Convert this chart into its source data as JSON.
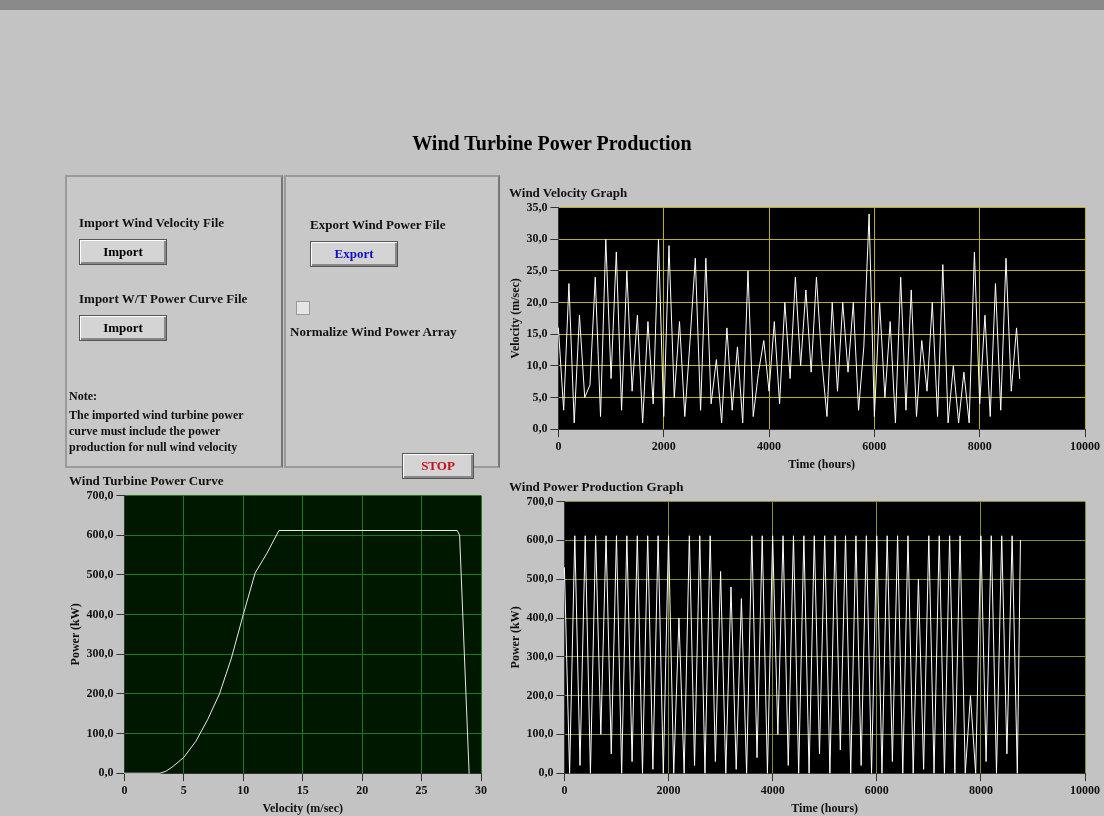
{
  "chart_data": [
    {
      "type": "other",
      "title": "Wind Turbine Power Production",
      "annotations": [
        "Import Wind Velocity File",
        "Import",
        "Import W/T Power Curve File",
        "Import",
        "Note:",
        "The imported wind turbine power curve must include the power production for null wind velocity",
        "Export Wind Power File",
        "Export",
        "Normalize Wind Power Array",
        "STOP"
      ]
    },
    {
      "type": "line",
      "title": "Wind Velocity Graph",
      "xlabel": "Time (hours)",
      "ylabel": "Velocity (m/sec)",
      "grid": true,
      "xlim": [
        0,
        10000
      ],
      "xticks": [
        0,
        2000,
        4000,
        6000,
        8000,
        10000
      ],
      "ylim": [
        0,
        35
      ],
      "yticks": [
        {
          "value": 0,
          "label": "0,0"
        },
        {
          "value": 5,
          "label": "5,0"
        },
        {
          "value": 10,
          "label": "10,0"
        },
        {
          "value": 15,
          "label": "15,0"
        },
        {
          "value": 20,
          "label": "20,0"
        },
        {
          "value": 25,
          "label": "25,0"
        },
        {
          "value": 30,
          "label": "30,0"
        },
        {
          "value": 35,
          "label": "35,0"
        }
      ],
      "x": [
        0,
        100,
        200,
        300,
        400,
        500,
        600,
        700,
        800,
        900,
        1000,
        1100,
        1200,
        1300,
        1400,
        1500,
        1600,
        1700,
        1800,
        1900,
        2000,
        2100,
        2200,
        2300,
        2400,
        2500,
        2600,
        2700,
        2800,
        2900,
        3000,
        3100,
        3200,
        3300,
        3400,
        3500,
        3600,
        3700,
        3800,
        3900,
        4000,
        4100,
        4200,
        4300,
        4400,
        4500,
        4600,
        4700,
        4800,
        4900,
        5000,
        5100,
        5200,
        5300,
        5400,
        5500,
        5600,
        5700,
        5800,
        5900,
        6000,
        6100,
        6200,
        6300,
        6400,
        6500,
        6600,
        6700,
        6800,
        6900,
        7000,
        7100,
        7200,
        7300,
        7400,
        7500,
        7600,
        7700,
        7800,
        7900,
        8000,
        8100,
        8200,
        8300,
        8400,
        8500,
        8600,
        8700,
        8760
      ],
      "series": [
        {
          "color": "#ffffff",
          "values": [
            16,
            3,
            23,
            1,
            18,
            5,
            7,
            24,
            2,
            30,
            8,
            28,
            3,
            25,
            6,
            18,
            1,
            17,
            4,
            30,
            2,
            29,
            5,
            17,
            2,
            14,
            27,
            3,
            27,
            4,
            11,
            1,
            16,
            3,
            13,
            1,
            25,
            2,
            9,
            14,
            6,
            17,
            4,
            20,
            8,
            24,
            10,
            22,
            9,
            24,
            11,
            2,
            20,
            6,
            20,
            9,
            20,
            3,
            13,
            34,
            2,
            20,
            5,
            17,
            1,
            24,
            3,
            22,
            2,
            14,
            6,
            20,
            2,
            26,
            1,
            10,
            1,
            9,
            1,
            28,
            4,
            18,
            2,
            23,
            3,
            27,
            6,
            16,
            8
          ]
        }
      ]
    },
    {
      "type": "line",
      "title": "Wind Turbine Power Curve",
      "xlabel": "Velocity (m/sec)",
      "ylabel": "Power (kW)",
      "grid": true,
      "xlim": [
        0,
        30
      ],
      "xticks": [
        0,
        5,
        10,
        15,
        20,
        25,
        30
      ],
      "ylim": [
        0,
        700
      ],
      "yticks": [
        {
          "value": 0,
          "label": "0,0"
        },
        {
          "value": 100,
          "label": "100,0"
        },
        {
          "value": 200,
          "label": "200,0"
        },
        {
          "value": 300,
          "label": "300,0"
        },
        {
          "value": 400,
          "label": "400,0"
        },
        {
          "value": 500,
          "label": "500,0"
        },
        {
          "value": 600,
          "label": "600,0"
        },
        {
          "value": 700,
          "label": "700,0"
        }
      ],
      "x": [
        0,
        3,
        3.5,
        4,
        5,
        6,
        7,
        8,
        9,
        10,
        11,
        12,
        13,
        28,
        28.2,
        29
      ],
      "series": [
        {
          "color": "#e8e8e8",
          "values": [
            0,
            0,
            5,
            15,
            40,
            80,
            135,
            200,
            290,
            400,
            505,
            555,
            612,
            612,
            600,
            0
          ]
        }
      ]
    },
    {
      "type": "line",
      "title": "Wind Power Production Graph",
      "xlabel": "Time (hours)",
      "ylabel": "Power (kW)",
      "grid": true,
      "xlim": [
        0,
        10000
      ],
      "xticks": [
        0,
        2000,
        4000,
        6000,
        8000,
        10000
      ],
      "ylim": [
        0,
        700
      ],
      "yticks": [
        {
          "value": 0,
          "label": "0,0"
        },
        {
          "value": 100,
          "label": "100,0"
        },
        {
          "value": 200,
          "label": "200,0"
        },
        {
          "value": 300,
          "label": "300,0"
        },
        {
          "value": 400,
          "label": "400,0"
        },
        {
          "value": 500,
          "label": "500,0"
        },
        {
          "value": 600,
          "label": "600,0"
        },
        {
          "value": 700,
          "label": "700,0"
        }
      ],
      "x": [
        0,
        100,
        200,
        300,
        400,
        500,
        600,
        700,
        800,
        900,
        1000,
        1100,
        1200,
        1300,
        1400,
        1500,
        1600,
        1700,
        1800,
        1900,
        2000,
        2100,
        2200,
        2300,
        2400,
        2500,
        2600,
        2700,
        2800,
        2900,
        3000,
        3100,
        3200,
        3300,
        3400,
        3500,
        3600,
        3700,
        3800,
        3900,
        4000,
        4100,
        4200,
        4300,
        4400,
        4500,
        4600,
        4700,
        4800,
        4900,
        5000,
        5100,
        5200,
        5300,
        5400,
        5500,
        5600,
        5700,
        5800,
        5900,
        6000,
        6100,
        6200,
        6300,
        6400,
        6500,
        6600,
        6700,
        6800,
        6900,
        7000,
        7100,
        7200,
        7300,
        7400,
        7500,
        7600,
        7700,
        7800,
        7900,
        8000,
        8100,
        8200,
        8300,
        8400,
        8500,
        8600,
        8700,
        8760
      ],
      "series": [
        {
          "color": "#ffffff",
          "values": [
            530,
            0,
            612,
            20,
            612,
            0,
            612,
            100,
            612,
            50,
            612,
            0,
            612,
            30,
            612,
            0,
            612,
            10,
            612,
            0,
            612,
            0,
            400,
            0,
            612,
            20,
            612,
            0,
            612,
            30,
            520,
            0,
            480,
            10,
            450,
            0,
            612,
            40,
            612,
            0,
            612,
            100,
            612,
            20,
            612,
            0,
            612,
            0,
            612,
            50,
            612,
            0,
            612,
            60,
            612,
            0,
            612,
            20,
            612,
            0,
            612,
            0,
            612,
            30,
            612,
            0,
            612,
            0,
            500,
            10,
            612,
            0,
            612,
            0,
            612,
            0,
            612,
            0,
            200,
            0,
            612,
            30,
            612,
            0,
            612,
            50,
            612,
            0,
            600
          ]
        }
      ]
    }
  ]
}
